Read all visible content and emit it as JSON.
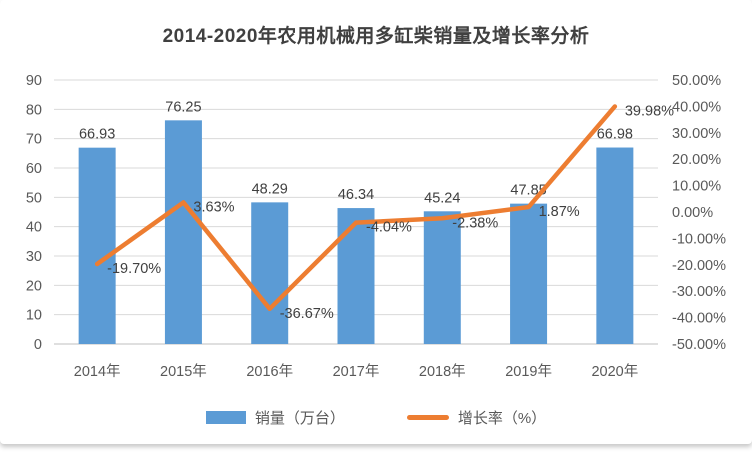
{
  "chart_data": {
    "type": "combo-bar-line",
    "title": "2014-2020年农用机械用多缸柴销量及增长率分析",
    "categories": [
      "2014年",
      "2015年",
      "2016年",
      "2017年",
      "2018年",
      "2019年",
      "2020年"
    ],
    "series": [
      {
        "name": "销量（万台）",
        "type": "bar",
        "axis": "left",
        "color": "#5B9BD5",
        "values": [
          66.93,
          76.25,
          48.29,
          46.34,
          45.24,
          47.85,
          66.98
        ],
        "labels": [
          "66.93",
          "76.25",
          "48.29",
          "46.34",
          "45.24",
          "47.85",
          "66.98"
        ]
      },
      {
        "name": "增长率（%）",
        "type": "line",
        "axis": "right",
        "color": "#ED7D31",
        "values": [
          -19.7,
          3.63,
          -36.67,
          -4.04,
          -2.38,
          1.87,
          39.98
        ],
        "labels": [
          "-19.70%",
          "3.63%",
          "-36.67%",
          "-4.04%",
          "-2.38%",
          "1.87%",
          "39.98%"
        ]
      }
    ],
    "left_axis": {
      "min": 0,
      "max": 90,
      "tick_labels": [
        "0",
        "10",
        "20",
        "30",
        "40",
        "50",
        "60",
        "70",
        "80",
        "90"
      ]
    },
    "right_axis": {
      "min": -50,
      "max": 50,
      "tick_labels": [
        "-50.00%",
        "-40.00%",
        "-30.00%",
        "-20.00%",
        "-10.00%",
        "0.00%",
        "10.00%",
        "20.00%",
        "30.00%",
        "40.00%",
        "50.00%"
      ]
    },
    "grid": true,
    "legend_position": "bottom",
    "colors": {
      "grid": "#D9D9D9",
      "axis_line": "#BFBFBF",
      "tick_text": "#595959",
      "label_text": "#404040",
      "title_text": "#404040"
    }
  },
  "legend": {
    "items": [
      {
        "label": "销量（万台）",
        "swatch": "bar",
        "color": "#5B9BD5"
      },
      {
        "label": "增长率（%）",
        "swatch": "line",
        "color": "#ED7D31"
      }
    ]
  }
}
